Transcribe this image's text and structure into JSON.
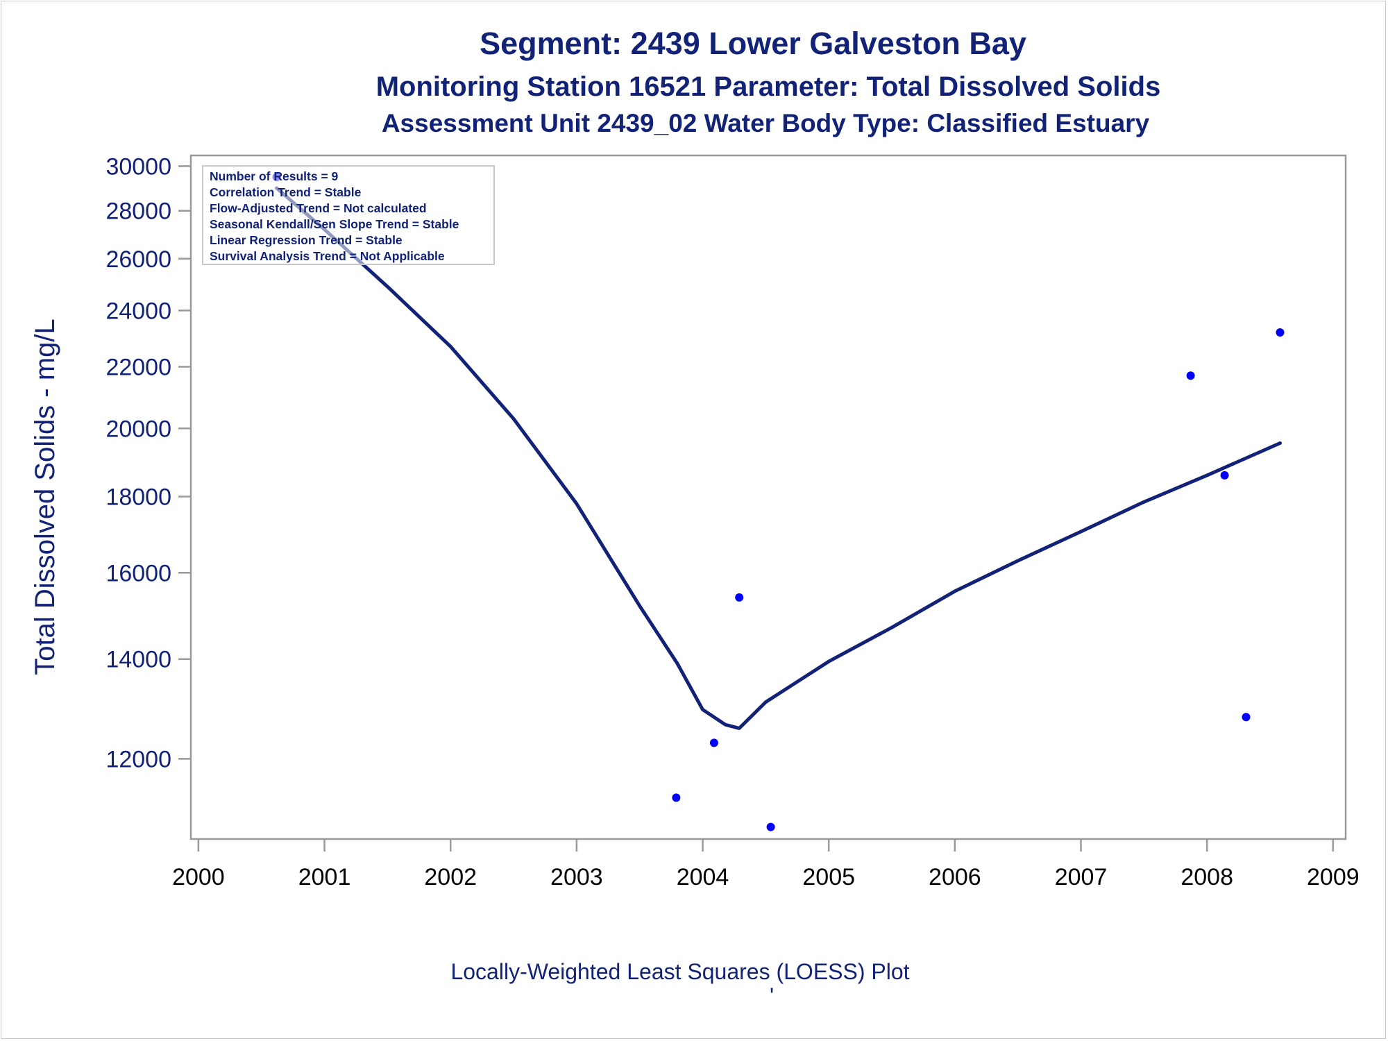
{
  "chart_data": {
    "type": "scatter",
    "title": "Segment: 2439  Lower Galveston Bay",
    "subtitle_lines": [
      "Monitoring Station 16521 Parameter: Total Dissolved Solids",
      "Assessment Unit 2439_02   Water Body Type: Classified Estuary"
    ],
    "ylabel": "Total Dissolved Solids - mg/L",
    "xlabel": "",
    "footnote": "Locally-Weighted Least Squares (LOESS) Plot",
    "footnote_mark": "'",
    "y_scale": "log",
    "ylim": [
      10600,
      30500
    ],
    "xlim": [
      1999.94,
      2009.1
    ],
    "y_ticks": [
      12000,
      14000,
      16000,
      18000,
      20000,
      22000,
      24000,
      26000,
      28000,
      30000
    ],
    "x_ticks": [
      2000,
      2001,
      2002,
      2003,
      2004,
      2005,
      2006,
      2007,
      2008,
      2009
    ],
    "grid": false,
    "legend": "none",
    "colors": {
      "points": "#0000ff",
      "trend_line": "#112277",
      "text": "#112277",
      "axis": "#999999"
    },
    "series": [
      {
        "type": "scatter",
        "x": [
          2000.62,
          2003.79,
          2004.09,
          2004.29,
          2004.54,
          2007.87,
          2008.14,
          2008.31,
          2008.58
        ],
        "y": [
          29500,
          11300,
          12300,
          15400,
          10800,
          21700,
          18600,
          12800,
          23200
        ]
      },
      {
        "type": "line",
        "x": [
          2000.62,
          2001.0,
          2001.5,
          2002.0,
          2002.5,
          2003.0,
          2003.5,
          2003.8,
          2004.0,
          2004.18,
          2004.29,
          2004.5,
          2005.0,
          2005.5,
          2006.0,
          2006.5,
          2007.0,
          2007.5,
          2008.0,
          2008.58
        ],
        "y": [
          29000,
          27200,
          24900,
          22700,
          20300,
          17800,
          15200,
          13900,
          12950,
          12650,
          12580,
          13100,
          13950,
          14700,
          15550,
          16300,
          17050,
          17850,
          18600,
          19550
        ]
      }
    ],
    "inset_box": [
      "Number of Results = 9",
      "Correlation Trend = Stable",
      "Flow-Adjusted Trend = Not calculated",
      "Seasonal Kendall/Sen Slope Trend = Stable",
      "Linear Regression Trend = Stable",
      "Survival Analysis Trend = Not Applicable"
    ]
  }
}
